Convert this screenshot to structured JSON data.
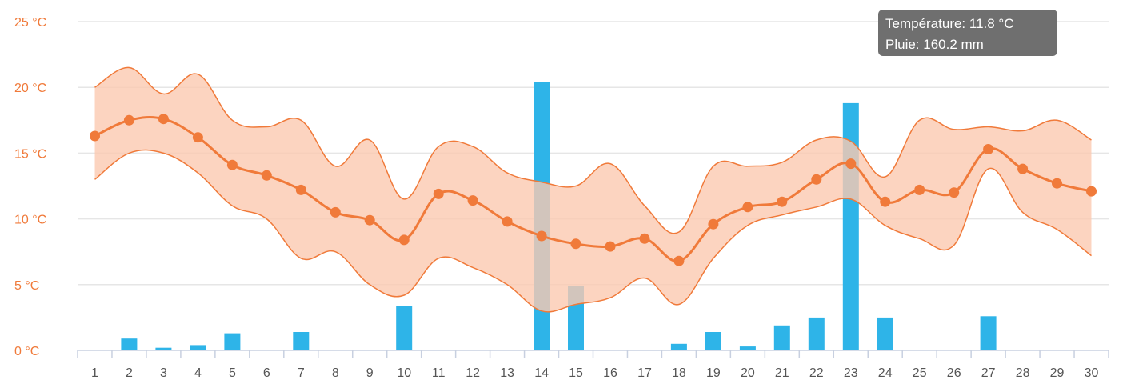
{
  "chart_data": {
    "type": "line",
    "x": [
      1,
      2,
      3,
      4,
      5,
      6,
      7,
      8,
      9,
      10,
      11,
      12,
      13,
      14,
      15,
      16,
      17,
      18,
      19,
      20,
      21,
      22,
      23,
      24,
      25,
      26,
      27,
      28,
      29,
      30
    ],
    "y_axis": {
      "min": 0,
      "max": 25,
      "step": 5,
      "tick_labels": [
        "0 °C",
        "5 °C",
        "10 °C",
        "15 °C",
        "20 °C",
        "25 °C"
      ]
    },
    "series": [
      {
        "kind": "line",
        "color": "#f07a3a",
        "values": [
          16.3,
          17.5,
          17.6,
          16.2,
          14.1,
          13.3,
          12.2,
          10.5,
          9.9,
          8.4,
          11.9,
          11.4,
          9.8,
          8.7,
          8.1,
          7.9,
          8.5,
          6.8,
          9.6,
          10.9,
          11.3,
          13.0,
          14.2,
          11.3,
          12.2,
          12.0,
          15.3,
          13.8,
          12.7,
          12.1
        ]
      },
      {
        "kind": "area-range",
        "color": "#fbc9b0",
        "min": [
          13.0,
          15.0,
          15.0,
          13.5,
          11.0,
          10.0,
          7.0,
          7.5,
          5.0,
          4.2,
          7.0,
          6.3,
          5.0,
          3.0,
          3.5,
          4.0,
          5.5,
          3.5,
          7.0,
          9.5,
          10.3,
          10.9,
          11.5,
          9.5,
          8.5,
          8.0,
          13.8,
          10.5,
          9.2,
          7.2
        ],
        "max": [
          20.0,
          21.5,
          19.5,
          21.0,
          17.5,
          17.0,
          17.5,
          14.0,
          16.0,
          11.5,
          15.5,
          15.5,
          13.5,
          12.8,
          12.5,
          14.2,
          11.0,
          9.0,
          14.0,
          14.0,
          14.3,
          16.0,
          15.9,
          13.2,
          17.5,
          16.8,
          17.0,
          16.7,
          17.5,
          16.0
        ]
      },
      {
        "kind": "bar",
        "color": "#2eb4e8",
        "values": [
          0,
          0.9,
          0.2,
          0.4,
          1.3,
          0,
          1.4,
          0,
          0,
          3.4,
          0,
          0,
          0,
          20.4,
          4.9,
          0,
          0,
          0.5,
          1.4,
          0.3,
          1.9,
          2.5,
          18.8,
          2.5,
          0,
          0,
          2.6,
          0,
          0,
          0
        ]
      }
    ],
    "tooltip": {
      "line1": "Température: 11.8 °C",
      "line2": "Pluie: 160.2 mm"
    }
  }
}
